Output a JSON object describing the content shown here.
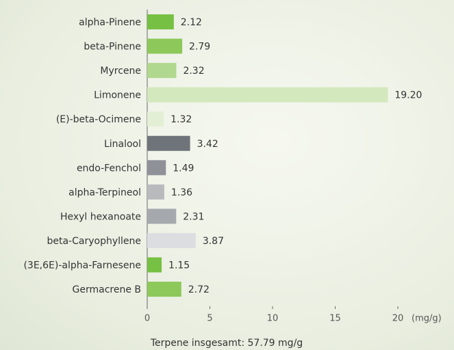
{
  "chart_data": {
    "type": "barh",
    "categories": [
      "alpha-Pinene",
      "beta-Pinene",
      "Myrcene",
      "Limonene",
      "(E)-beta-Ocimene",
      "Linalool",
      "endo-Fenchol",
      "alpha-Terpineol",
      "Hexyl hexanoate",
      "beta-Caryophyllene",
      "(3E,6E)-alpha-Farnesene",
      "Germacrene B"
    ],
    "values": [
      2.12,
      2.79,
      2.32,
      19.2,
      1.32,
      3.42,
      1.49,
      1.36,
      2.31,
      3.87,
      1.15,
      2.72
    ],
    "value_labels": [
      "2.12",
      "2.79",
      "2.32",
      "19.20",
      "1.32",
      "3.42",
      "1.49",
      "1.36",
      "2.31",
      "3.87",
      "1.15",
      "2.72"
    ],
    "colors": [
      "#76c043",
      "#8cc85a",
      "#b0d88e",
      "#d3e8bd",
      "#e3efd5",
      "#6f747a",
      "#8e9198",
      "#b8babe",
      "#a5a8ad",
      "#dcdde0",
      "#76c043",
      "#8cc85a"
    ],
    "xlim": [
      0,
      20
    ],
    "xticks": [
      0,
      5,
      10,
      15,
      20
    ],
    "x_label": "(mg/g)",
    "annotation": "Terpene insgesamt: 57.79 mg/g"
  }
}
